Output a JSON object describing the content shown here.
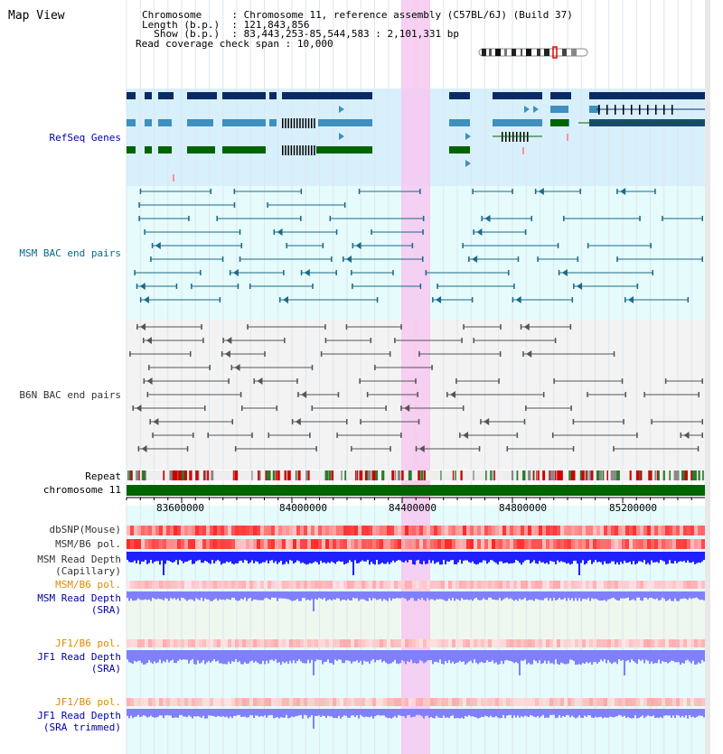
{
  "page": {
    "title": "Map View"
  },
  "info": {
    "chromosome_label": "Chromosome",
    "chromosome_value": "Chromosome 11, reference assembly (C57BL/6J) (Build 37)",
    "length_label": "Length (b.p.)",
    "length_value": "121,843,856",
    "show_label": "Show (b.p.)",
    "show_value": "83,443,253-85,544,583 : 2,101,331 bp",
    "coverage_label": "Read coverage check span",
    "coverage_value": "10,000"
  },
  "tracks": {
    "refseq": "RefSeq Genes",
    "msm_bac": "MSM BAC end pairs",
    "b6n_bac": "B6N BAC end pairs",
    "repeat": "Repeat",
    "chromosome": "chromosome 11",
    "dbsnp": "dbSNP(Mouse)",
    "msm_b6_pol_1": "MSM/B6 pol.",
    "msm_depth_cap_1": "MSM Read Depth",
    "msm_depth_cap_2": "(Capillary)",
    "msm_b6_pol_2": "MSM/B6 pol.",
    "msm_depth_sra_1": "MSM Read Depth",
    "msm_depth_sra_2": "(SRA)",
    "jf1_b6_pol_1": "JF1/B6 pol.",
    "jf1_depth_sra_1": "JF1 Read Depth",
    "jf1_depth_sra_2": "(SRA)",
    "jf1_b6_pol_2": "JF1/B6 pol.",
    "jf1_depth_trim_1": "JF1 Read Depth",
    "jf1_depth_trim_2": "(SRA trimmed)"
  },
  "axis": {
    "ticks": [
      "83600000",
      "84000000",
      "84400000",
      "84800000",
      "85200000"
    ]
  },
  "colors": {
    "refseq_dark": "#0a2a66",
    "refseq_mid": "#3f8fbf",
    "refseq_green": "#006400",
    "bac_msm": "#1a6a8a",
    "bac_b6n": "#555555",
    "highlight": "#f6c8f0",
    "depth_blue": "#2020ff",
    "depth_light": "#8080ff"
  }
}
